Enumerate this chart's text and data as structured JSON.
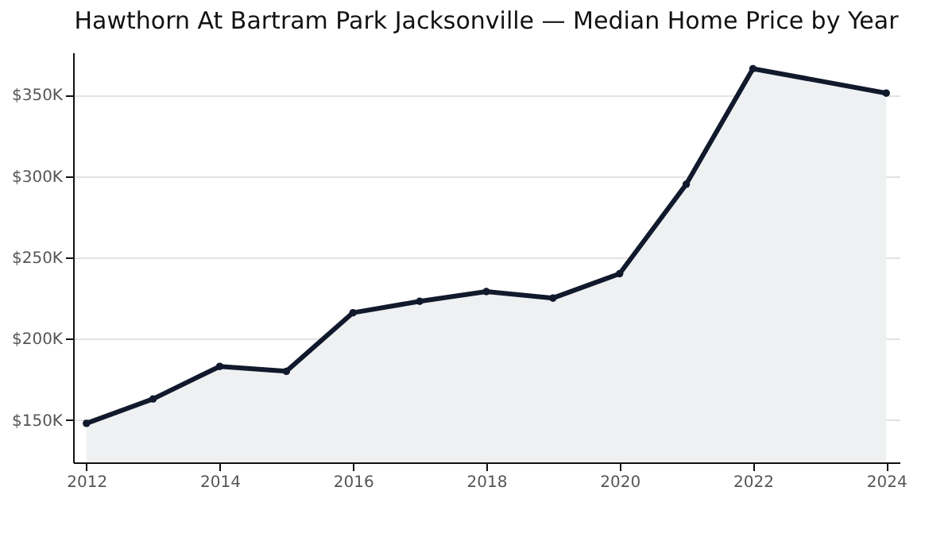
{
  "chart_data": {
    "type": "area",
    "title": "Hawthorn At Bartram Park Jacksonville — Median Home Price by Year",
    "x": [
      2012,
      2013,
      2014,
      2015,
      2016,
      2017,
      2018,
      2019,
      2020,
      2021,
      2022,
      2024
    ],
    "series": [
      {
        "color": "#111a2c",
        "values": [
          148000,
          163000,
          183000,
          180000,
          216000,
          223000,
          229000,
          225000,
          240000,
          295000,
          366000,
          351000
        ]
      }
    ],
    "xlim": [
      2011.8,
      2024.2
    ],
    "xticks": [
      2012,
      2014,
      2016,
      2018,
      2020,
      2022,
      2024
    ],
    "ylim": [
      124000,
      376000
    ],
    "yticks": [
      {
        "value": 150000,
        "label": "$150K"
      },
      {
        "value": 200000,
        "label": "$200K"
      },
      {
        "value": 250000,
        "label": "$250K"
      },
      {
        "value": 300000,
        "label": "$300K"
      },
      {
        "value": 350000,
        "label": "$350K"
      }
    ],
    "grid": "y",
    "marker": "circle",
    "line_style": "solid"
  }
}
